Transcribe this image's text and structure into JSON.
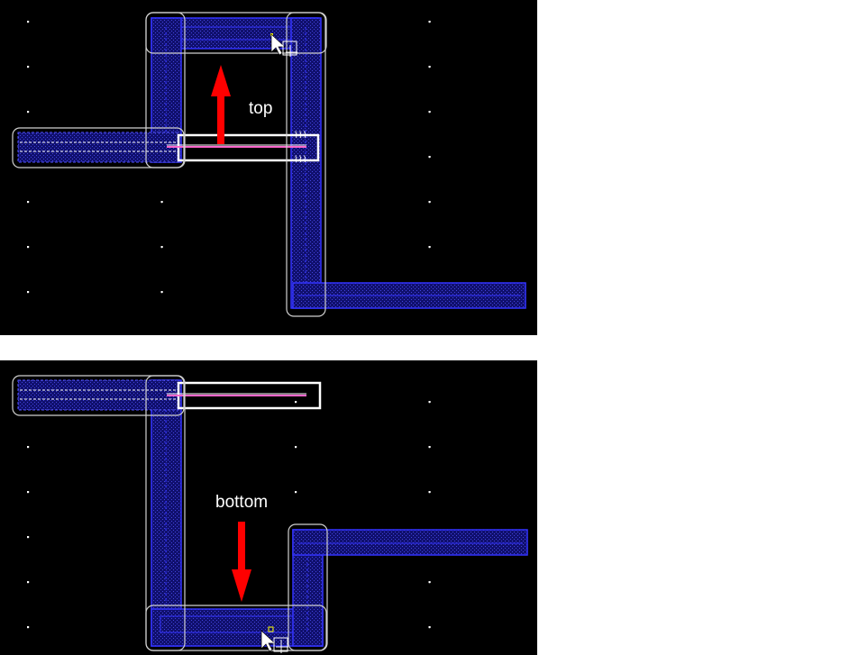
{
  "panels": [
    {
      "id": "top",
      "label": "top",
      "arrow_direction": "up"
    },
    {
      "id": "bottom",
      "label": "bottom",
      "arrow_direction": "down"
    }
  ],
  "colors": {
    "background": "#000000",
    "grid_dot": "#ffffff",
    "wire_fill": "#1a1a8c",
    "wire_outline": "#3333ff",
    "selection_outline": "#d0d0d0",
    "highlight_line": "#ff66cc",
    "arrow": "#ff0000",
    "marker": "#ffff00"
  },
  "icons": [
    "mouse-pointer-icon",
    "move-cursor-icon"
  ]
}
